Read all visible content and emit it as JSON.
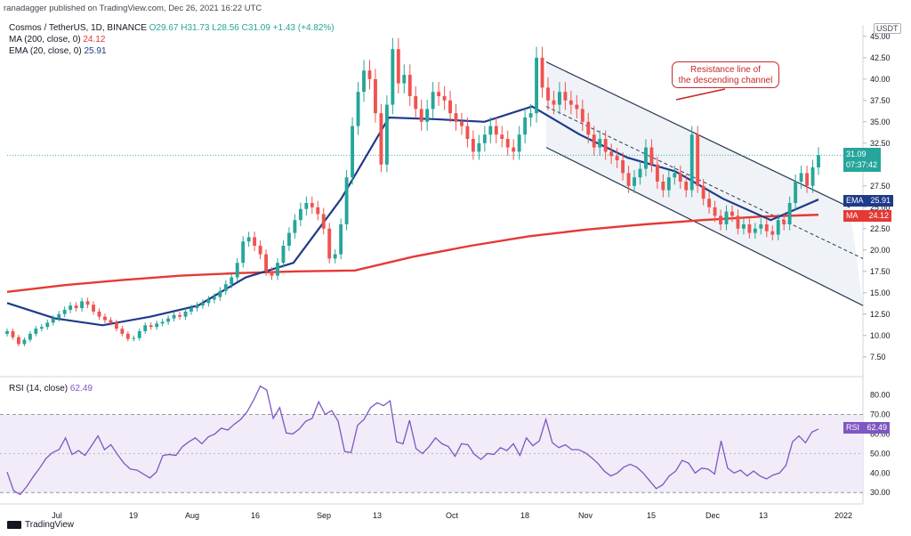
{
  "header": {
    "published_by": "ranadagger published on TradingView.com, Dec 26, 2021 16:22 UTC"
  },
  "legend": {
    "title_prefix": "Cosmos / TetherUS, 1D, BINANCE",
    "o": "O29.67",
    "h": "H31.73",
    "l": "L28.56",
    "c": "C31.09",
    "change": "+1.43 (+4.82%)",
    "ma": "MA (200, close, 0)",
    "ma_value": "24.12",
    "ema": "EMA (20, close, 0)",
    "ema_value": "25.91",
    "rsi": "RSI (14, close)",
    "rsi_value": "62.49"
  },
  "annotation": {
    "line1": "Resistance line of",
    "line2": "the descending channel"
  },
  "tags": {
    "usdt": "USDT",
    "price": "31.09",
    "countdown": "07:37:42",
    "ema_label": "EMA",
    "ema_val": "25.91",
    "ma_label": "MA",
    "ma_val": "24.12",
    "rsi_label": "RSI",
    "rsi_val": "62.49"
  },
  "logo": {
    "text": "TradingView"
  },
  "colors": {
    "up": "#26a69a",
    "down": "#ef5350",
    "ma": "#e53935",
    "ema": "#1e3a8a",
    "rsi": "#7e57c2",
    "channel": "#2a3a55"
  },
  "chart_data": [
    {
      "type": "candlestick",
      "title": "Cosmos / TetherUS, 1D, BINANCE",
      "y_scale": "linear",
      "ylim": [
        5.5,
        45.5
      ],
      "y_ticks": [
        "45.00",
        "42.50",
        "40.00",
        "37.50",
        "35.00",
        "32.50",
        "27.50",
        "25.00",
        "22.50",
        "20.00",
        "17.50",
        "15.00",
        "12.50",
        "10.00",
        "7.50"
      ],
      "x_ticks": [
        "Jul",
        "19",
        "Aug",
        "16",
        "Sep",
        "13",
        "Oct",
        "18",
        "Nov",
        "15",
        "Dec",
        "13",
        "2022"
      ],
      "closes": [
        10.5,
        9.8,
        9.0,
        9.5,
        10.2,
        10.8,
        11.0,
        11.5,
        12.0,
        12.5,
        13.0,
        13.5,
        13.2,
        14.0,
        13.6,
        12.8,
        12.2,
        11.8,
        11.5,
        10.8,
        10.2,
        9.6,
        9.7,
        10.5,
        11.2,
        11.0,
        11.4,
        11.6,
        12.0,
        12.4,
        12.2,
        12.8,
        13.2,
        13.5,
        13.8,
        14.2,
        14.5,
        15.2,
        16.0,
        16.8,
        18.5,
        21.0,
        21.5,
        20.5,
        19.5,
        17.5,
        17.0,
        18.5,
        20.5,
        22.0,
        23.5,
        24.8,
        25.5,
        25.0,
        24.2,
        22.5,
        19.0,
        19.5,
        23.0,
        28.5,
        34.5,
        38.5,
        41.0,
        40.0,
        36.0,
        30.0,
        37.0,
        43.5,
        39.5,
        40.5,
        38.0,
        36.5,
        35.0,
        36.5,
        38.5,
        38.0,
        37.5,
        36.0,
        35.0,
        34.5,
        33.0,
        31.5,
        32.5,
        33.5,
        34.5,
        33.5,
        33.0,
        32.0,
        31.5,
        33.5,
        35.5,
        36.0,
        42.5,
        39.0,
        37.5,
        37.0,
        38.5,
        37.5,
        37.0,
        36.5,
        35.0,
        33.5,
        32.0,
        33.0,
        31.5,
        31.0,
        30.5,
        29.0,
        27.5,
        28.5,
        29.5,
        32.0,
        30.0,
        28.0,
        27.0,
        28.5,
        29.0,
        28.0,
        27.0,
        33.5,
        27.5,
        26.0,
        25.0,
        24.0,
        23.0,
        24.5,
        24.0,
        22.5,
        23.0,
        22.0,
        22.5,
        23.0,
        22.2,
        21.8,
        23.5,
        23.0,
        25.5,
        28.0,
        29.0,
        27.5,
        29.67,
        31.09
      ],
      "ma_200": [
        15.1,
        15.9,
        16.5,
        17.0,
        17.3,
        17.5,
        17.6,
        19.2,
        20.5,
        21.6,
        22.4,
        23.0,
        23.5,
        23.9,
        24.12
      ],
      "ema_20": [
        13.8,
        12.0,
        11.2,
        12.2,
        13.5,
        16.8,
        18.5,
        26.0,
        35.5,
        35.3,
        35.0,
        36.8,
        33.5,
        30.8,
        29.2,
        26.0,
        23.5,
        25.91
      ],
      "channel": {
        "upper_start": [
          42.0,
          "Oct 25"
        ],
        "upper_end": [
          25.0,
          "Dec 31"
        ],
        "lower_start": [
          32.0,
          "Oct 25"
        ],
        "lower_end": [
          13.5,
          "Jan 3"
        ],
        "mid_start": [
          36.8,
          "Oct 25"
        ],
        "mid_end": [
          19.0,
          "Jan 3"
        ]
      }
    },
    {
      "type": "line",
      "title": "RSI (14, close)",
      "ylim": [
        26,
        88
      ],
      "y_ticks": [
        "80.00",
        "70.00",
        "60.00",
        "50.00",
        "40.00",
        "30.00"
      ],
      "band": [
        30,
        70
      ],
      "values": [
        40.5,
        31.0,
        29.0,
        33.0,
        38.0,
        42.5,
        47.5,
        50.5,
        52.0,
        58.0,
        49.5,
        51.5,
        49.0,
        54.0,
        59.0,
        52.0,
        54.5,
        49.5,
        45.0,
        42.0,
        41.5,
        39.5,
        37.5,
        40.5,
        49.0,
        49.5,
        49.0,
        53.5,
        56.0,
        58.0,
        55.0,
        58.5,
        60.0,
        63.0,
        62.0,
        65.0,
        67.5,
        71.5,
        77.5,
        84.5,
        82.5,
        68.0,
        73.5,
        60.5,
        60.0,
        62.5,
        66.5,
        68.0,
        76.5,
        70.0,
        72.0,
        66.5,
        51.0,
        50.5,
        64.5,
        67.5,
        73.5,
        76.0,
        74.5,
        77.0,
        56.0,
        55.0,
        67.0,
        52.5,
        50.0,
        53.5,
        58.0,
        55.0,
        53.5,
        48.5,
        55.0,
        54.5,
        49.5,
        47.0,
        50.0,
        49.5,
        53.0,
        51.5,
        55.0,
        49.0,
        58.0,
        54.0,
        56.5,
        67.5,
        55.5,
        53.0,
        54.5,
        52.0,
        52.0,
        50.5,
        48.0,
        45.0,
        41.0,
        38.5,
        40.0,
        43.0,
        44.5,
        43.0,
        40.0,
        36.0,
        32.0,
        34.0,
        38.5,
        41.0,
        46.5,
        45.0,
        40.0,
        42.5,
        42.0,
        39.5,
        56.5,
        42.5,
        40.0,
        41.5,
        38.5,
        41.0,
        38.5,
        37.0,
        39.0,
        40.0,
        44.0,
        56.0,
        59.0,
        55.5,
        61.0,
        62.49
      ]
    }
  ]
}
